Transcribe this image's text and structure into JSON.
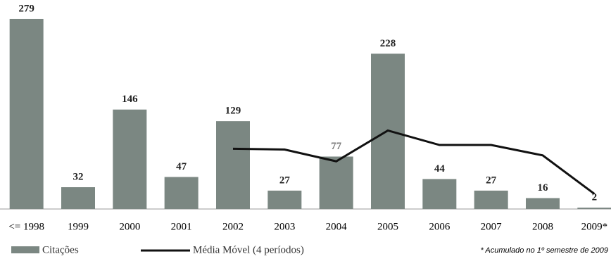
{
  "chart_data": {
    "type": "bar",
    "categories": [
      "<= 1998",
      "1999",
      "2000",
      "2001",
      "2002",
      "2003",
      "2004",
      "2005",
      "2006",
      "2007",
      "2008",
      "2009*"
    ],
    "series": [
      {
        "name": "Citações",
        "type": "bar",
        "color": "#7b8782",
        "values": [
          279,
          32,
          146,
          47,
          129,
          27,
          77,
          228,
          44,
          27,
          16,
          2
        ]
      },
      {
        "name": "Média Móvel (4 períodos)",
        "type": "line",
        "color": "#111111",
        "values": [
          null,
          null,
          null,
          null,
          88.5,
          87.25,
          70,
          115.25,
          94,
          94,
          78.75,
          22.25
        ]
      }
    ],
    "ylim": [
      0,
      280
    ],
    "note": "* Acumulado no 1º semestre de 2009"
  }
}
